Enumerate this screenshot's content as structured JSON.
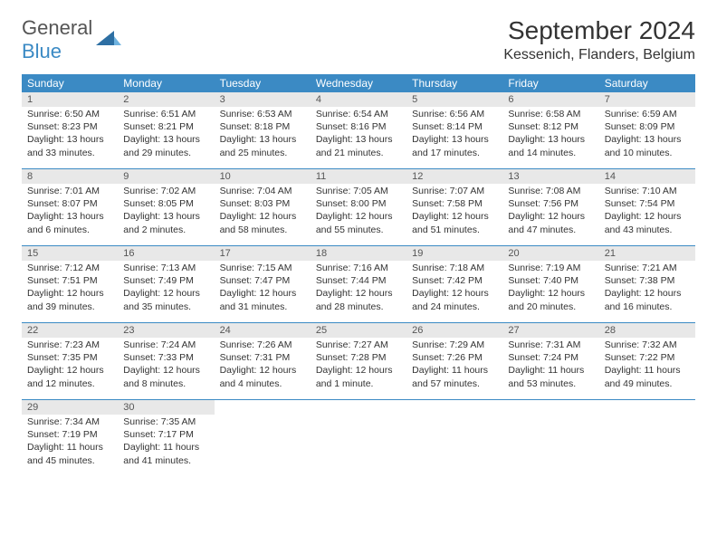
{
  "logo": {
    "general": "General",
    "blue": "Blue"
  },
  "title": "September 2024",
  "location": "Kessenich, Flanders, Belgium",
  "header_bg": "#3b8ac4",
  "day_bar_bg": "#e8e8e8",
  "row_border": "#3b8ac4",
  "dayNames": [
    "Sunday",
    "Monday",
    "Tuesday",
    "Wednesday",
    "Thursday",
    "Friday",
    "Saturday"
  ],
  "weeks": [
    [
      {
        "n": "1",
        "sr": "Sunrise: 6:50 AM",
        "ss": "Sunset: 8:23 PM",
        "d1": "Daylight: 13 hours",
        "d2": "and 33 minutes."
      },
      {
        "n": "2",
        "sr": "Sunrise: 6:51 AM",
        "ss": "Sunset: 8:21 PM",
        "d1": "Daylight: 13 hours",
        "d2": "and 29 minutes."
      },
      {
        "n": "3",
        "sr": "Sunrise: 6:53 AM",
        "ss": "Sunset: 8:18 PM",
        "d1": "Daylight: 13 hours",
        "d2": "and 25 minutes."
      },
      {
        "n": "4",
        "sr": "Sunrise: 6:54 AM",
        "ss": "Sunset: 8:16 PM",
        "d1": "Daylight: 13 hours",
        "d2": "and 21 minutes."
      },
      {
        "n": "5",
        "sr": "Sunrise: 6:56 AM",
        "ss": "Sunset: 8:14 PM",
        "d1": "Daylight: 13 hours",
        "d2": "and 17 minutes."
      },
      {
        "n": "6",
        "sr": "Sunrise: 6:58 AM",
        "ss": "Sunset: 8:12 PM",
        "d1": "Daylight: 13 hours",
        "d2": "and 14 minutes."
      },
      {
        "n": "7",
        "sr": "Sunrise: 6:59 AM",
        "ss": "Sunset: 8:09 PM",
        "d1": "Daylight: 13 hours",
        "d2": "and 10 minutes."
      }
    ],
    [
      {
        "n": "8",
        "sr": "Sunrise: 7:01 AM",
        "ss": "Sunset: 8:07 PM",
        "d1": "Daylight: 13 hours",
        "d2": "and 6 minutes."
      },
      {
        "n": "9",
        "sr": "Sunrise: 7:02 AM",
        "ss": "Sunset: 8:05 PM",
        "d1": "Daylight: 13 hours",
        "d2": "and 2 minutes."
      },
      {
        "n": "10",
        "sr": "Sunrise: 7:04 AM",
        "ss": "Sunset: 8:03 PM",
        "d1": "Daylight: 12 hours",
        "d2": "and 58 minutes."
      },
      {
        "n": "11",
        "sr": "Sunrise: 7:05 AM",
        "ss": "Sunset: 8:00 PM",
        "d1": "Daylight: 12 hours",
        "d2": "and 55 minutes."
      },
      {
        "n": "12",
        "sr": "Sunrise: 7:07 AM",
        "ss": "Sunset: 7:58 PM",
        "d1": "Daylight: 12 hours",
        "d2": "and 51 minutes."
      },
      {
        "n": "13",
        "sr": "Sunrise: 7:08 AM",
        "ss": "Sunset: 7:56 PM",
        "d1": "Daylight: 12 hours",
        "d2": "and 47 minutes."
      },
      {
        "n": "14",
        "sr": "Sunrise: 7:10 AM",
        "ss": "Sunset: 7:54 PM",
        "d1": "Daylight: 12 hours",
        "d2": "and 43 minutes."
      }
    ],
    [
      {
        "n": "15",
        "sr": "Sunrise: 7:12 AM",
        "ss": "Sunset: 7:51 PM",
        "d1": "Daylight: 12 hours",
        "d2": "and 39 minutes."
      },
      {
        "n": "16",
        "sr": "Sunrise: 7:13 AM",
        "ss": "Sunset: 7:49 PM",
        "d1": "Daylight: 12 hours",
        "d2": "and 35 minutes."
      },
      {
        "n": "17",
        "sr": "Sunrise: 7:15 AM",
        "ss": "Sunset: 7:47 PM",
        "d1": "Daylight: 12 hours",
        "d2": "and 31 minutes."
      },
      {
        "n": "18",
        "sr": "Sunrise: 7:16 AM",
        "ss": "Sunset: 7:44 PM",
        "d1": "Daylight: 12 hours",
        "d2": "and 28 minutes."
      },
      {
        "n": "19",
        "sr": "Sunrise: 7:18 AM",
        "ss": "Sunset: 7:42 PM",
        "d1": "Daylight: 12 hours",
        "d2": "and 24 minutes."
      },
      {
        "n": "20",
        "sr": "Sunrise: 7:19 AM",
        "ss": "Sunset: 7:40 PM",
        "d1": "Daylight: 12 hours",
        "d2": "and 20 minutes."
      },
      {
        "n": "21",
        "sr": "Sunrise: 7:21 AM",
        "ss": "Sunset: 7:38 PM",
        "d1": "Daylight: 12 hours",
        "d2": "and 16 minutes."
      }
    ],
    [
      {
        "n": "22",
        "sr": "Sunrise: 7:23 AM",
        "ss": "Sunset: 7:35 PM",
        "d1": "Daylight: 12 hours",
        "d2": "and 12 minutes."
      },
      {
        "n": "23",
        "sr": "Sunrise: 7:24 AM",
        "ss": "Sunset: 7:33 PM",
        "d1": "Daylight: 12 hours",
        "d2": "and 8 minutes."
      },
      {
        "n": "24",
        "sr": "Sunrise: 7:26 AM",
        "ss": "Sunset: 7:31 PM",
        "d1": "Daylight: 12 hours",
        "d2": "and 4 minutes."
      },
      {
        "n": "25",
        "sr": "Sunrise: 7:27 AM",
        "ss": "Sunset: 7:28 PM",
        "d1": "Daylight: 12 hours",
        "d2": "and 1 minute."
      },
      {
        "n": "26",
        "sr": "Sunrise: 7:29 AM",
        "ss": "Sunset: 7:26 PM",
        "d1": "Daylight: 11 hours",
        "d2": "and 57 minutes."
      },
      {
        "n": "27",
        "sr": "Sunrise: 7:31 AM",
        "ss": "Sunset: 7:24 PM",
        "d1": "Daylight: 11 hours",
        "d2": "and 53 minutes."
      },
      {
        "n": "28",
        "sr": "Sunrise: 7:32 AM",
        "ss": "Sunset: 7:22 PM",
        "d1": "Daylight: 11 hours",
        "d2": "and 49 minutes."
      }
    ],
    [
      {
        "n": "29",
        "sr": "Sunrise: 7:34 AM",
        "ss": "Sunset: 7:19 PM",
        "d1": "Daylight: 11 hours",
        "d2": "and 45 minutes."
      },
      {
        "n": "30",
        "sr": "Sunrise: 7:35 AM",
        "ss": "Sunset: 7:17 PM",
        "d1": "Daylight: 11 hours",
        "d2": "and 41 minutes."
      },
      null,
      null,
      null,
      null,
      null
    ]
  ]
}
